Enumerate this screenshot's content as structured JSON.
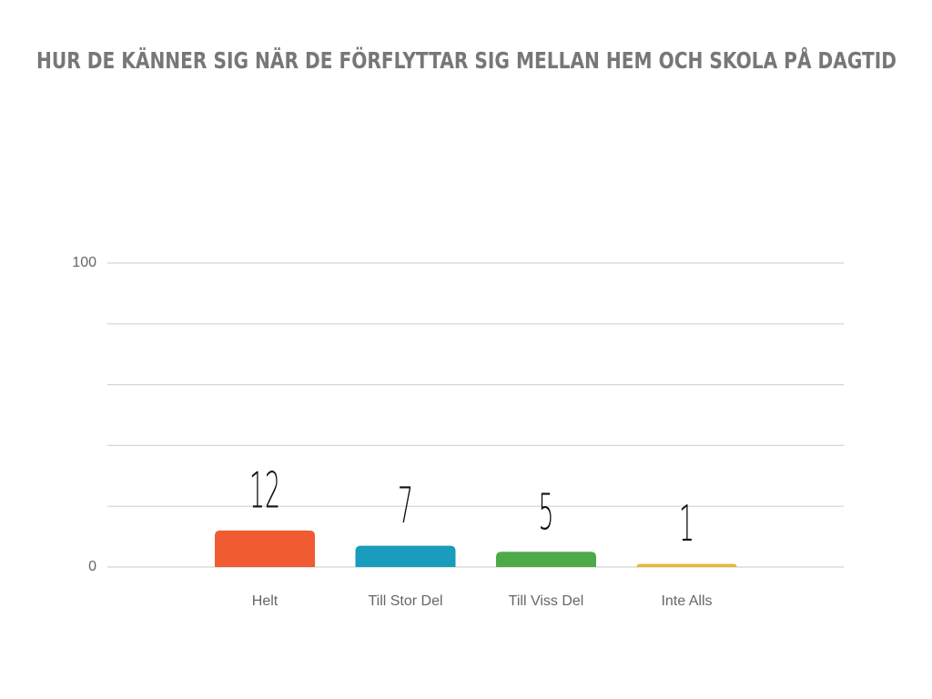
{
  "chart_data": {
    "type": "bar",
    "title": "HUR DE KÄNNER SIG NÄR DE FÖRFLYTTAR SIG MELLAN HEM OCH SKOLA PÅ DAGTID",
    "categories": [
      "Helt",
      "Till Stor Del",
      "Till Viss Del",
      "Inte Alls"
    ],
    "values": [
      12,
      7,
      5,
      1
    ],
    "colors": [
      "#f05b32",
      "#1a9cbc",
      "#4caa48",
      "#e8b734"
    ],
    "ylim": [
      0,
      100
    ],
    "yticks": [
      0,
      100
    ],
    "ygrid": [
      0,
      20,
      40,
      60,
      80,
      100
    ],
    "grid": true
  }
}
